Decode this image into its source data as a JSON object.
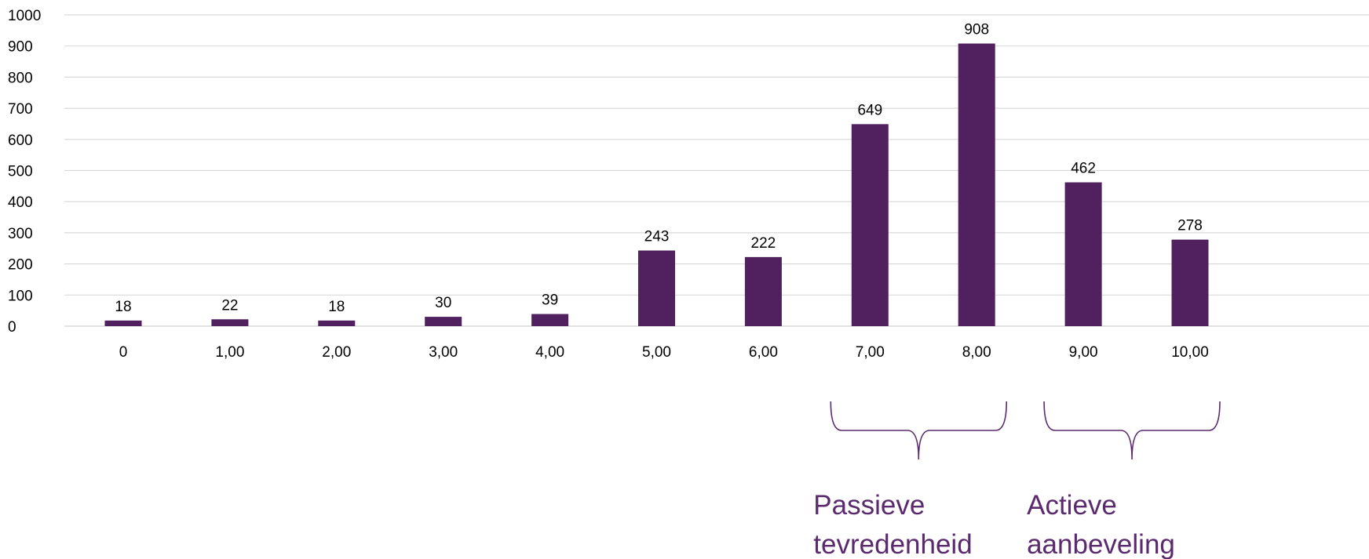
{
  "chart_data": {
    "type": "bar",
    "title": "",
    "xlabel": "",
    "ylabel": "",
    "categories": [
      "0",
      "1,00",
      "2,00",
      "3,00",
      "4,00",
      "5,00",
      "6,00",
      "7,00",
      "8,00",
      "9,00",
      "10,00"
    ],
    "values": [
      18,
      22,
      18,
      30,
      39,
      243,
      222,
      649,
      908,
      462,
      278
    ],
    "ylim": [
      0,
      1000
    ],
    "yticks": [
      0,
      100,
      200,
      300,
      400,
      500,
      600,
      700,
      800,
      900,
      1000
    ],
    "grid": true,
    "legend": "none",
    "data_labels": true,
    "bar_color": "#51205f",
    "annotation_color": "#5b2a6e",
    "annotations": [
      {
        "name": "passive",
        "text_lines": [
          "Passieve",
          "tevredenheid"
        ],
        "from_category": "7,00",
        "to_category": "8,00"
      },
      {
        "name": "active",
        "text_lines": [
          "Actieve",
          "aanbeveling"
        ],
        "from_category": "9,00",
        "to_category": "10,00"
      }
    ]
  }
}
